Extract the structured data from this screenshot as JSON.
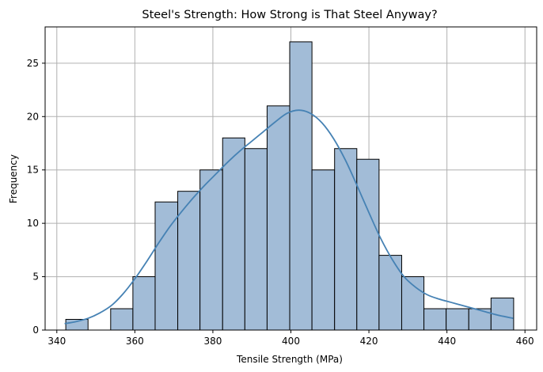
{
  "chart_data": {
    "type": "bar",
    "subtype": "histogram",
    "title": "Steel's Strength: How Strong is That Steel Anyway?",
    "xlabel": "Tensile Strength (MPa)",
    "ylabel": "Frequency",
    "xlim": [
      337,
      463
    ],
    "ylim": [
      0,
      28.4
    ],
    "xticks": [
      340,
      360,
      380,
      400,
      420,
      440,
      460
    ],
    "yticks": [
      0,
      5,
      10,
      15,
      20,
      25
    ],
    "grid": true,
    "bin_edges": [
      342.3,
      348.0,
      353.8,
      359.5,
      365.2,
      371.0,
      376.7,
      382.5,
      388.2,
      393.9,
      399.7,
      405.4,
      411.2,
      416.9,
      422.6,
      428.4,
      434.1,
      439.8,
      445.6,
      451.3,
      457.1
    ],
    "counts": [
      1,
      0,
      2,
      5,
      12,
      13,
      15,
      18,
      17,
      21,
      27,
      15,
      17,
      16,
      7,
      5,
      2,
      2,
      2,
      3
    ],
    "kde": {
      "x": [
        342,
        345,
        348,
        351,
        354,
        357,
        360,
        363,
        366,
        369,
        372,
        375,
        378,
        381,
        384,
        387,
        390,
        393,
        396,
        399,
        402,
        405,
        408,
        411,
        414,
        417,
        420,
        423,
        426,
        429,
        432,
        435,
        438,
        441,
        444,
        447,
        450,
        453,
        457
      ],
      "y": [
        0.6,
        0.8,
        1.1,
        1.6,
        2.3,
        3.4,
        4.8,
        6.4,
        8.1,
        9.7,
        11.1,
        12.4,
        13.6,
        14.7,
        15.8,
        16.8,
        17.7,
        18.6,
        19.5,
        20.3,
        20.6,
        20.3,
        19.4,
        17.9,
        15.9,
        13.5,
        11.0,
        8.6,
        6.6,
        5.0,
        4.0,
        3.3,
        2.9,
        2.6,
        2.3,
        2.0,
        1.7,
        1.4,
        1.1
      ]
    },
    "colors": {
      "bar_fill": "#a2bcd7",
      "bar_edge": "#000000",
      "kde_line": "#4682b4",
      "grid": "#b0b0b0"
    }
  }
}
